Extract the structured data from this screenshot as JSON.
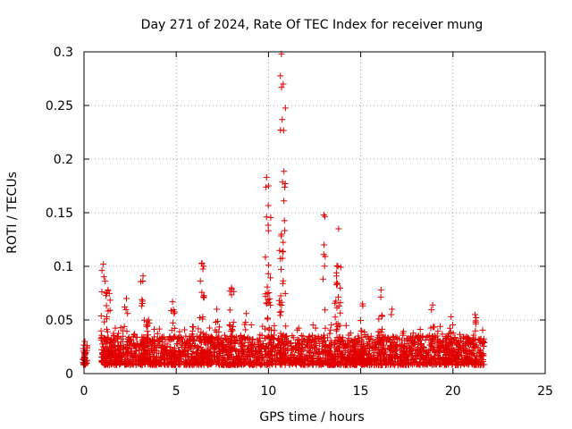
{
  "chart_data": {
    "type": "scatter",
    "title": "Day 271 of 2024, Rate Of TEC Index for receiver mung",
    "xlabel": "GPS time / hours",
    "ylabel": "ROTI / TECUs",
    "xlim": [
      0,
      25
    ],
    "ylim": [
      0,
      0.3
    ],
    "xticks": [
      "0",
      "5",
      "10",
      "15",
      "20",
      "25"
    ],
    "yticks": [
      "0",
      "0.05",
      "0.1",
      "0.15",
      "0.2",
      "0.25",
      "0.3"
    ],
    "grid": true,
    "marker": "+",
    "color": "#ff0000",
    "x_extent": [
      0,
      21.7
    ],
    "baseline_range": [
      0.008,
      0.035
    ],
    "peaks": [
      {
        "x": 0.05,
        "y": 0.03
      },
      {
        "x": 1.05,
        "y": 0.102
      },
      {
        "x": 1.3,
        "y": 0.078
      },
      {
        "x": 2.3,
        "y": 0.07
      },
      {
        "x": 3.2,
        "y": 0.091
      },
      {
        "x": 3.5,
        "y": 0.05
      },
      {
        "x": 4.8,
        "y": 0.067
      },
      {
        "x": 6.4,
        "y": 0.103
      },
      {
        "x": 7.2,
        "y": 0.06
      },
      {
        "x": 8.0,
        "y": 0.08
      },
      {
        "x": 8.8,
        "y": 0.056
      },
      {
        "x": 9.9,
        "y": 0.183
      },
      {
        "x": 10.0,
        "y": 0.175
      },
      {
        "x": 10.7,
        "y": 0.298
      },
      {
        "x": 10.8,
        "y": 0.27
      },
      {
        "x": 10.7,
        "y": 0.13
      },
      {
        "x": 13.0,
        "y": 0.148
      },
      {
        "x": 13.8,
        "y": 0.135
      },
      {
        "x": 13.7,
        "y": 0.085
      },
      {
        "x": 15.1,
        "y": 0.065
      },
      {
        "x": 16.1,
        "y": 0.078
      },
      {
        "x": 16.7,
        "y": 0.06
      },
      {
        "x": 18.9,
        "y": 0.064
      },
      {
        "x": 19.9,
        "y": 0.053
      },
      {
        "x": 21.2,
        "y": 0.055
      }
    ]
  }
}
